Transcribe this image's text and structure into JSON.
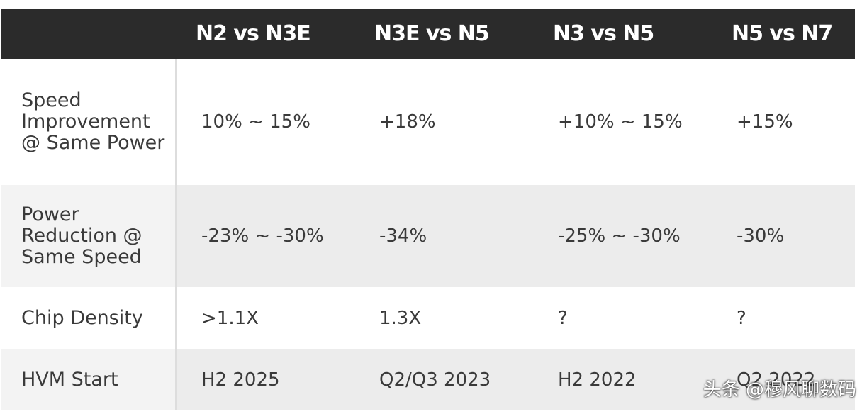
{
  "table": {
    "columns": [
      "N2 vs N3E",
      "N3E vs N5",
      "N3 vs N5",
      "N5 vs N7"
    ],
    "rows": [
      {
        "label": "Speed Improvement @ Same Power",
        "cells": [
          "10% ~ 15%",
          "+18%",
          "+10% ~ 15%",
          "+15%"
        ]
      },
      {
        "label": "Power Reduction @ Same Speed",
        "cells": [
          "-23% ~ -30%",
          "-34%",
          "-25% ~ -30%",
          "-30%"
        ]
      },
      {
        "label": "Chip Density",
        "cells": [
          ">1.1X",
          "1.3X",
          "?",
          "?"
        ]
      },
      {
        "label": "HVM Start",
        "cells": [
          "H2 2025",
          "Q2/Q3 2023",
          "H2 2022",
          "Q2 2022"
        ]
      }
    ]
  },
  "watermark": "头条 @穆风聊数码"
}
